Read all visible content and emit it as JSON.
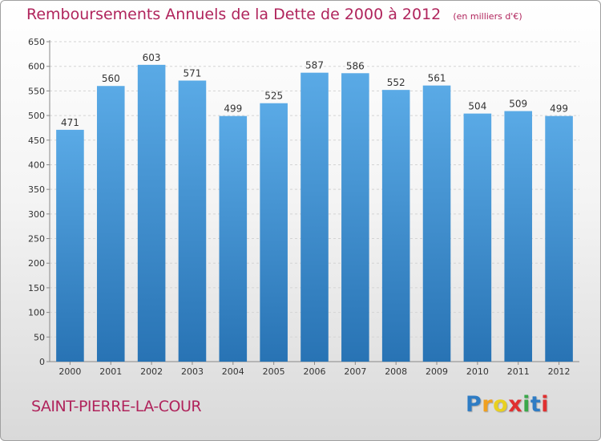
{
  "chart_data": {
    "type": "bar",
    "title": "Remboursements Annuels de la Dette de 2000 à 2012",
    "unit_note": "(en milliers d'€)",
    "categories": [
      "2000",
      "2001",
      "2002",
      "2003",
      "2004",
      "2005",
      "2006",
      "2007",
      "2008",
      "2009",
      "2010",
      "2011",
      "2012"
    ],
    "values": [
      471,
      560,
      603,
      571,
      499,
      525,
      587,
      586,
      552,
      561,
      504,
      509,
      499
    ],
    "ylim": [
      0,
      650
    ],
    "yticks": [
      0,
      50,
      100,
      150,
      200,
      250,
      300,
      350,
      400,
      450,
      500,
      550,
      600,
      650
    ],
    "grid": true,
    "xlabel": "",
    "ylabel": "",
    "bar_color_top": "#5aaae6",
    "bar_color_bottom": "#2873b4"
  },
  "commune": "SAINT-PIERRE-LA-COUR",
  "logo": {
    "letters": [
      "P",
      "r",
      "o",
      "x",
      "i",
      "t",
      "i"
    ],
    "colors": [
      "#2e7cc4",
      "#f0a020",
      "#e8d020",
      "#e03030",
      "#3aa84a",
      "#2e7cc4",
      "#e03030"
    ]
  },
  "title_color": "#b0245c"
}
